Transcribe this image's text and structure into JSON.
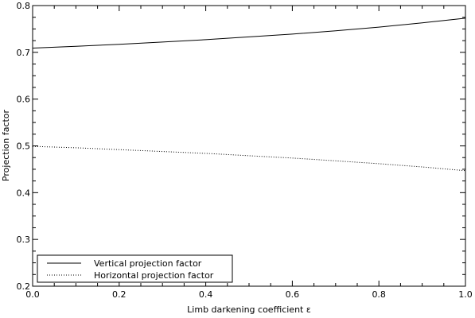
{
  "chart_data": {
    "type": "line",
    "xlabel": "Limb darkening coefficient ε",
    "ylabel": "Projection factor",
    "xlim": [
      0.0,
      1.0
    ],
    "ylim": [
      0.2,
      0.8
    ],
    "x_ticks": [
      "0.0",
      "0.2",
      "0.4",
      "0.6",
      "0.8",
      "1.0"
    ],
    "y_ticks": [
      "0.2",
      "0.3",
      "0.4",
      "0.5",
      "0.6",
      "0.7",
      "0.8"
    ],
    "grid": false,
    "legend_position": "bottom-left",
    "series": [
      {
        "name": "Vertical projection factor",
        "style": "solid",
        "x": [
          0.0,
          0.1,
          0.2,
          0.3,
          0.4,
          0.5,
          0.6,
          0.7,
          0.8,
          0.9,
          1.0
        ],
        "y": [
          0.709,
          0.713,
          0.717,
          0.722,
          0.727,
          0.733,
          0.739,
          0.746,
          0.754,
          0.763,
          0.773
        ]
      },
      {
        "name": "Horizontal projection factor",
        "style": "dotted",
        "x": [
          0.0,
          0.1,
          0.2,
          0.3,
          0.4,
          0.5,
          0.6,
          0.7,
          0.8,
          0.9,
          1.0
        ],
        "y": [
          0.499,
          0.496,
          0.492,
          0.488,
          0.484,
          0.479,
          0.474,
          0.468,
          0.462,
          0.455,
          0.447
        ]
      }
    ]
  }
}
